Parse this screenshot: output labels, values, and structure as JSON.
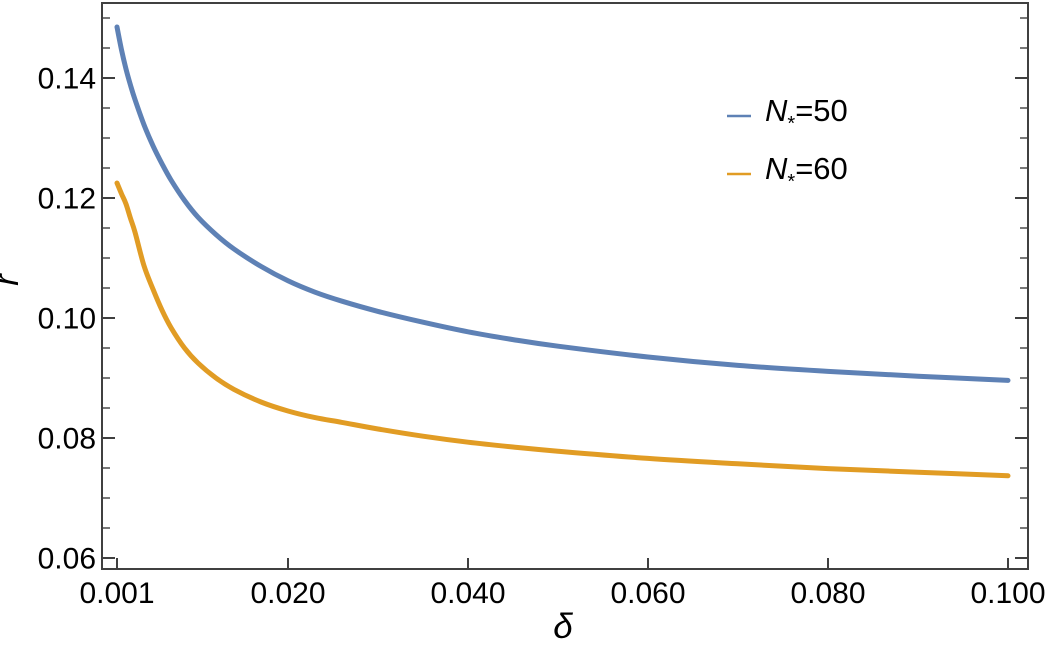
{
  "chart_data": {
    "type": "line",
    "xlabel": "δ",
    "ylabel": "r",
    "xlim": [
      0.001,
      0.1
    ],
    "ylim": [
      0.058,
      0.1525
    ],
    "grid": false,
    "frame": true,
    "frame_color": "#404040",
    "x_ticks": {
      "values": [
        0.001,
        0.02,
        0.04,
        0.06,
        0.08,
        0.1
      ],
      "labels": [
        "0.001",
        "0.020",
        "0.040",
        "0.060",
        "0.080",
        "0.100"
      ]
    },
    "y_ticks": {
      "values": [
        0.06,
        0.08,
        0.1,
        0.12,
        0.14
      ],
      "labels": [
        "0.06",
        "0.08",
        "0.10",
        "0.12",
        "0.14"
      ],
      "minor_step": 0.005,
      "minor_min": 0.06,
      "minor_max": 0.15
    },
    "legend": {
      "position": "top-right",
      "entries": [
        {
          "label": "N*=50",
          "base": "N",
          "subscript": "*",
          "suffix": "=50",
          "color": "#5e81b5"
        },
        {
          "label": "N*=60",
          "base": "N",
          "subscript": "*",
          "suffix": "=60",
          "color": "#e19c24"
        }
      ]
    },
    "series": [
      {
        "name": "N*=50",
        "color": "#5e81b5",
        "x": [
          0.001,
          0.0015,
          0.002,
          0.0025,
          0.003,
          0.004,
          0.005,
          0.006,
          0.007,
          0.0085,
          0.01,
          0.012,
          0.014,
          0.017,
          0.02,
          0.023,
          0.026,
          0.03,
          0.035,
          0.04,
          0.045,
          0.05,
          0.06,
          0.07,
          0.08,
          0.09,
          0.1
        ],
        "y": [
          0.1485,
          0.1447,
          0.1415,
          0.1388,
          0.1364,
          0.1322,
          0.1287,
          0.1257,
          0.123,
          0.1196,
          0.1168,
          0.1139,
          0.1115,
          0.1086,
          0.1062,
          0.1043,
          0.1028,
          0.1011,
          0.0993,
          0.0977,
          0.0964,
          0.0953,
          0.0935,
          0.0921,
          0.0911,
          0.0903,
          0.0896
        ]
      },
      {
        "name": "N*=60",
        "color": "#e19c24",
        "x": [
          0.001,
          0.0015,
          0.002,
          0.0025,
          0.003,
          0.004,
          0.005,
          0.006,
          0.007,
          0.0085,
          0.01,
          0.012,
          0.014,
          0.017,
          0.02,
          0.023,
          0.026,
          0.03,
          0.035,
          0.04,
          0.045,
          0.05,
          0.06,
          0.07,
          0.08,
          0.09,
          0.1
        ],
        "y": [
          0.1225,
          0.1207,
          0.119,
          0.1166,
          0.1143,
          0.1087,
          0.1048,
          0.1013,
          0.0984,
          0.095,
          0.0925,
          0.09,
          0.0881,
          0.086,
          0.0845,
          0.0834,
          0.0826,
          0.0815,
          0.0803,
          0.0793,
          0.0785,
          0.0778,
          0.0766,
          0.0757,
          0.0749,
          0.0743,
          0.0737
        ]
      }
    ]
  }
}
